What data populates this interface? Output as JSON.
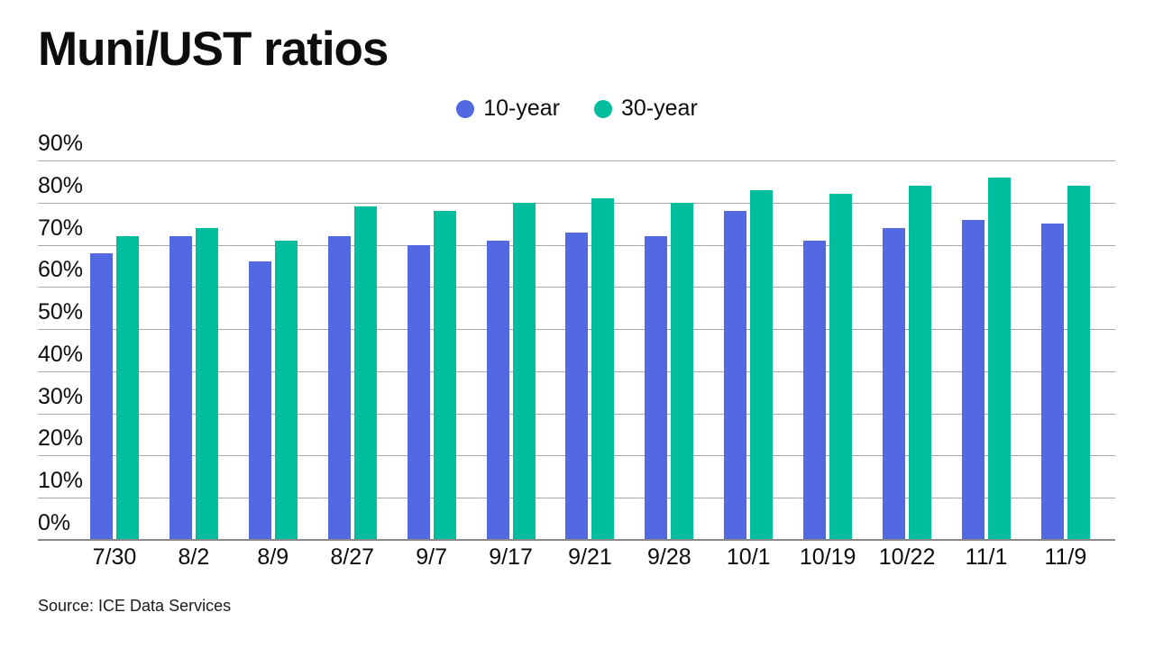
{
  "title": "Muni/UST ratios",
  "source": "Source: ICE Data Services",
  "colors": {
    "background": "#ffffff",
    "text": "#0d0d0d",
    "gridline": "#a8a8a8",
    "axis_line": "#8a8a8a",
    "series_10_year": "#5269e2",
    "series_30_year": "#00be9d"
  },
  "chart_data": {
    "type": "bar",
    "title": "Muni/UST ratios",
    "xlabel": "",
    "ylabel": "",
    "ylim": [
      0,
      90
    ],
    "ytick_step": 10,
    "ytick_suffix": "%",
    "grid": true,
    "legend_position": "top-center",
    "categories": [
      "7/30",
      "8/2",
      "8/9",
      "8/27",
      "9/7",
      "9/17",
      "9/21",
      "9/28",
      "10/1",
      "10/19",
      "10/22",
      "11/1",
      "11/9"
    ],
    "series": [
      {
        "name": "10-year",
        "color": "#5269e2",
        "values": [
          68,
          72,
          66,
          72,
          70,
          71,
          73,
          72,
          78,
          71,
          74,
          76,
          75
        ]
      },
      {
        "name": "30-year",
        "color": "#00be9d",
        "values": [
          72,
          74,
          71,
          79,
          78,
          80,
          81,
          80,
          83,
          82,
          84,
          86,
          84
        ]
      }
    ]
  }
}
